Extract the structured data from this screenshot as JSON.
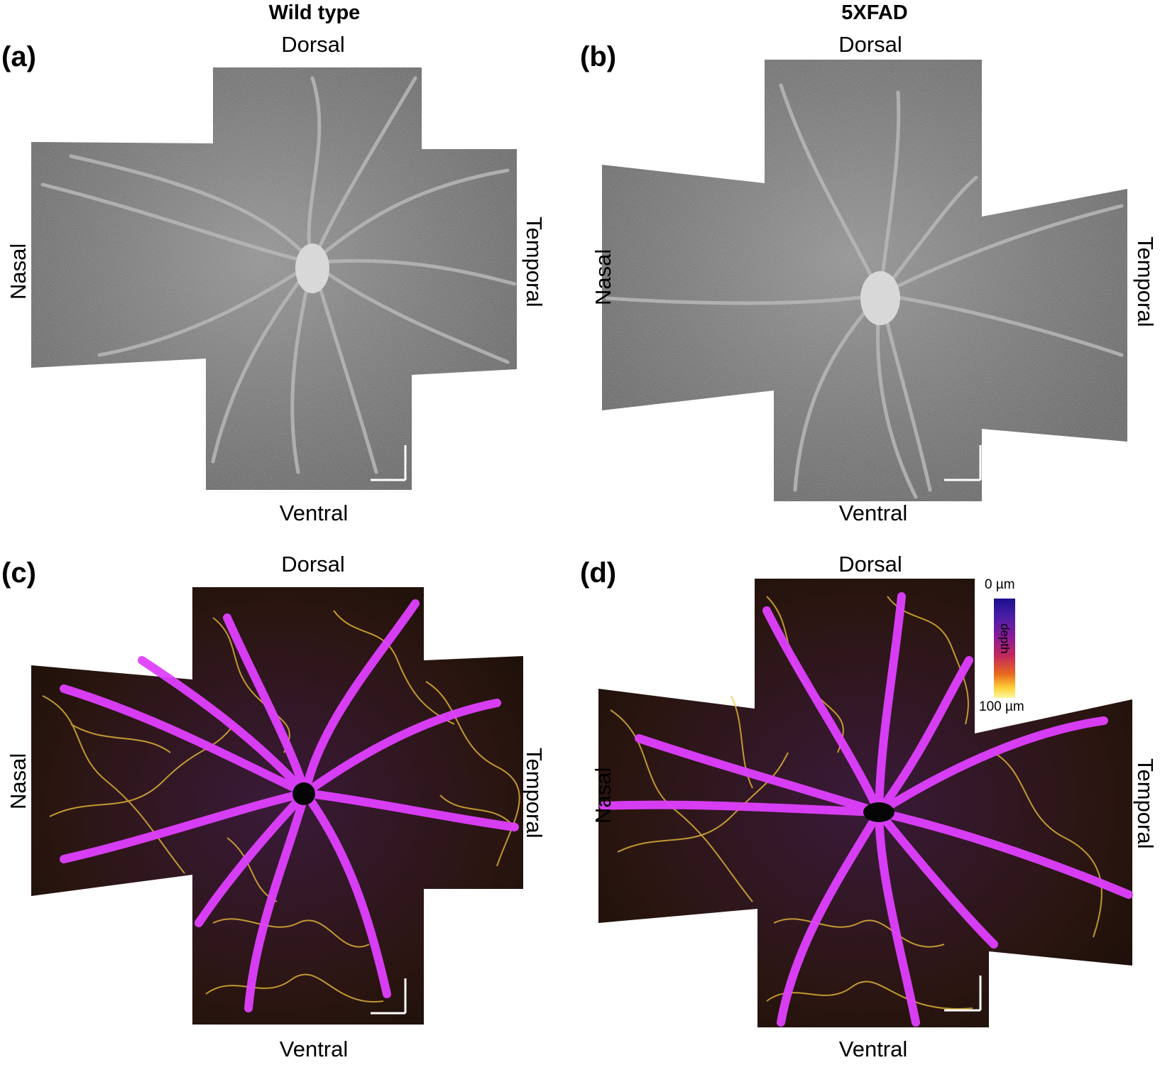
{
  "titles": {
    "left": "Wild type",
    "right": "5XFAD"
  },
  "panels": [
    {
      "label": "(a)",
      "dorsal": "Dorsal",
      "ventral": "Ventral",
      "nasal": "Nasal",
      "temporal": "Temporal"
    },
    {
      "label": "(b)",
      "dorsal": "Dorsal",
      "ventral": "Ventral",
      "nasal": "Nasal",
      "temporal": "Temporal"
    },
    {
      "label": "(c)",
      "dorsal": "Dorsal",
      "ventral": "Ventral",
      "nasal": "Nasal",
      "temporal": "Temporal"
    },
    {
      "label": "(d)",
      "dorsal": "Dorsal",
      "ventral": "Ventral",
      "nasal": "Nasal",
      "temporal": "Temporal"
    }
  ],
  "colorbar": {
    "top": "0 µm",
    "bottom": "100 µm",
    "middle": "depth"
  },
  "colors": {
    "vessel_magenta": "#e040ff",
    "capillary_yellow": "#f3c53a",
    "gray_bg": "#6e6e6e"
  }
}
